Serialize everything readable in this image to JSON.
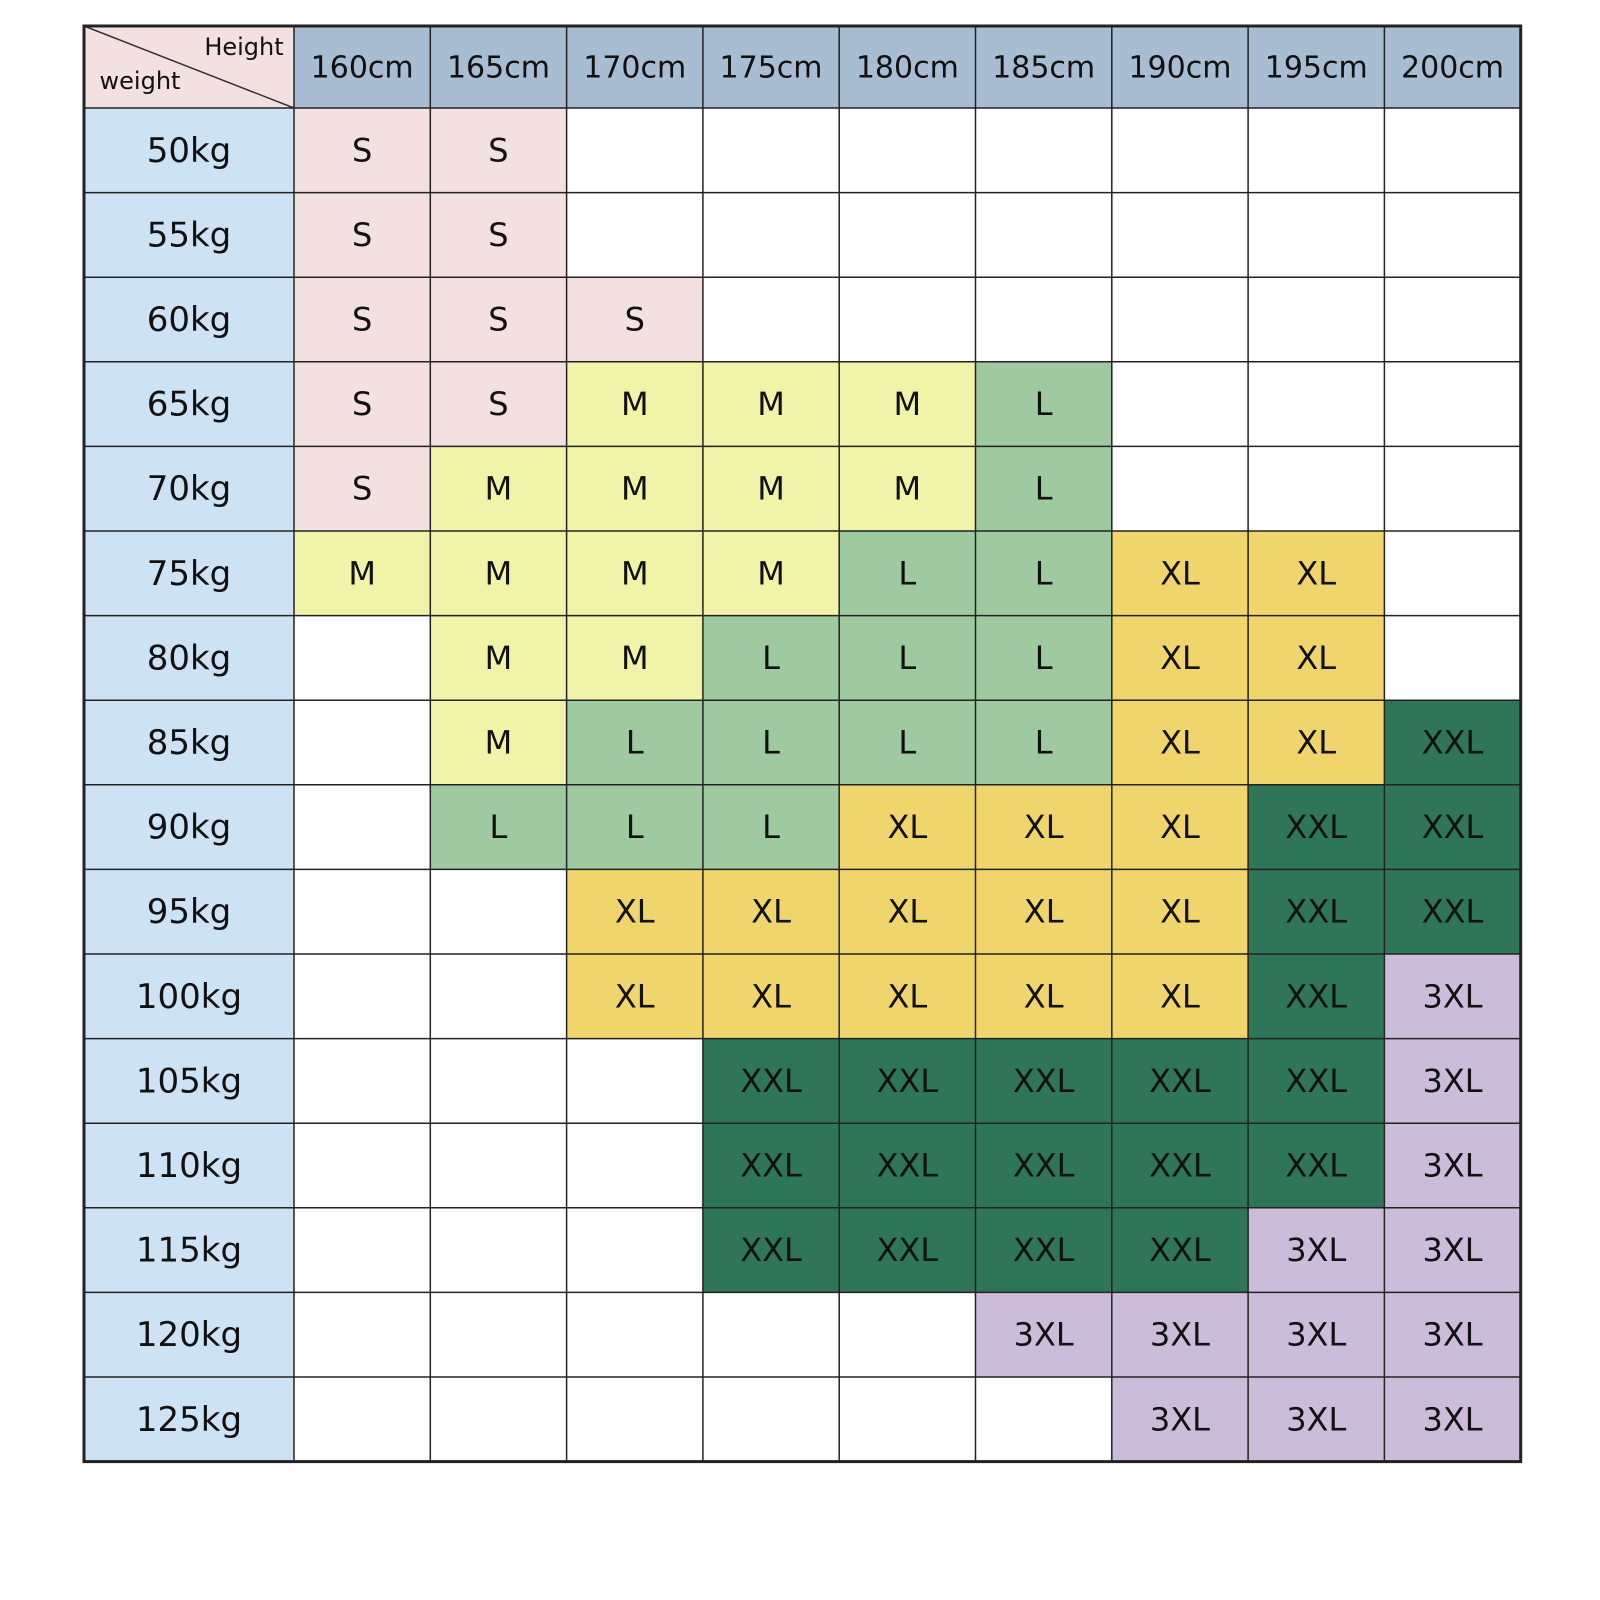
{
  "table": {
    "corner": {
      "top": "Height",
      "bottom": "weight"
    },
    "columns": [
      "160cm",
      "165cm",
      "170cm",
      "175cm",
      "180cm",
      "185cm",
      "190cm",
      "195cm",
      "200cm"
    ],
    "rows": [
      {
        "label": "50kg",
        "cells": [
          "S",
          "S",
          null,
          null,
          null,
          null,
          null,
          null,
          null
        ]
      },
      {
        "label": "55kg",
        "cells": [
          "S",
          "S",
          null,
          null,
          null,
          null,
          null,
          null,
          null
        ]
      },
      {
        "label": "60kg",
        "cells": [
          "S",
          "S",
          "S",
          null,
          null,
          null,
          null,
          null,
          null
        ]
      },
      {
        "label": "65kg",
        "cells": [
          "S",
          "S",
          "M",
          "M",
          "M",
          "L",
          null,
          null,
          null
        ]
      },
      {
        "label": "70kg",
        "cells": [
          "S",
          "M",
          "M",
          "M",
          "M",
          "L",
          null,
          null,
          null
        ]
      },
      {
        "label": "75kg",
        "cells": [
          "M",
          "M",
          "M",
          "M",
          "L",
          "L",
          "XL",
          "XL",
          null
        ]
      },
      {
        "label": "80kg",
        "cells": [
          null,
          "M",
          "M",
          "L",
          "L",
          "L",
          "XL",
          "XL",
          null
        ]
      },
      {
        "label": "85kg",
        "cells": [
          null,
          "M",
          "L",
          "L",
          "L",
          "L",
          "XL",
          "XL",
          "XXL"
        ]
      },
      {
        "label": "90kg",
        "cells": [
          null,
          "L",
          "L",
          "L",
          "XL",
          "XL",
          "XL",
          "XXL",
          "XXL"
        ]
      },
      {
        "label": "95kg",
        "cells": [
          null,
          null,
          "XL",
          "XL",
          "XL",
          "XL",
          "XL",
          "XXL",
          "XXL"
        ]
      },
      {
        "label": "100kg",
        "cells": [
          null,
          null,
          "XL",
          "XL",
          "XL",
          "XL",
          "XL",
          "XXL",
          "3XL"
        ]
      },
      {
        "label": "105kg",
        "cells": [
          null,
          null,
          null,
          "XXL",
          "XXL",
          "XXL",
          "XXL",
          "XXL",
          "3XL"
        ]
      },
      {
        "label": "110kg",
        "cells": [
          null,
          null,
          null,
          "XXL",
          "XXL",
          "XXL",
          "XXL",
          "XXL",
          "3XL"
        ]
      },
      {
        "label": "115kg",
        "cells": [
          null,
          null,
          null,
          "XXL",
          "XXL",
          "XXL",
          "XXL",
          "3XL",
          "3XL"
        ]
      },
      {
        "label": "120kg",
        "cells": [
          null,
          null,
          null,
          null,
          null,
          "3XL",
          "3XL",
          "3XL",
          "3XL"
        ]
      },
      {
        "label": "125kg",
        "cells": [
          null,
          null,
          null,
          null,
          null,
          null,
          "3XL",
          "3XL",
          "3XL"
        ]
      }
    ]
  },
  "size_colors": {
    "S": "#f3e0e0",
    "M": "#f1f3a9",
    "L": "#9fc9a0",
    "XL": "#f0d56c",
    "XXL": "#2f7658",
    "3XL": "#cbbdd9"
  },
  "header_color": "#a8bcd2",
  "row_header_color": "#cde2f3",
  "corner_color": "#f3e0e0"
}
